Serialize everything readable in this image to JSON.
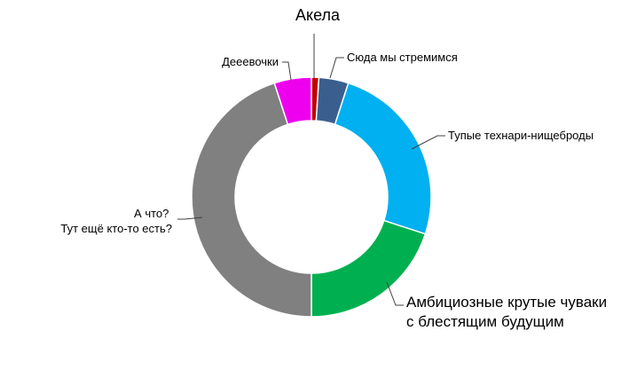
{
  "chart_data": {
    "type": "donut",
    "title": "",
    "legend": "none",
    "slices": [
      {
        "label": [
          "Акела"
        ],
        "value": 1,
        "color": "#C00000"
      },
      {
        "label": [
          "Сюда мы стремимся"
        ],
        "value": 4,
        "color": "#3A5F8F"
      },
      {
        "label": [
          "Тупые технари-нищеброды"
        ],
        "value": 25,
        "color": "#00B0F0"
      },
      {
        "label": [
          "Амбициозные крутые чуваки",
          "с блестящим будущим"
        ],
        "value": 20,
        "color": "#00B050"
      },
      {
        "label": [
          "А что?",
          "Тут ещё кто-то есть?"
        ],
        "value": 45,
        "color": "#808080"
      },
      {
        "label": [
          "Дееевочки"
        ],
        "value": 5,
        "color": "#EE00EE"
      }
    ]
  }
}
